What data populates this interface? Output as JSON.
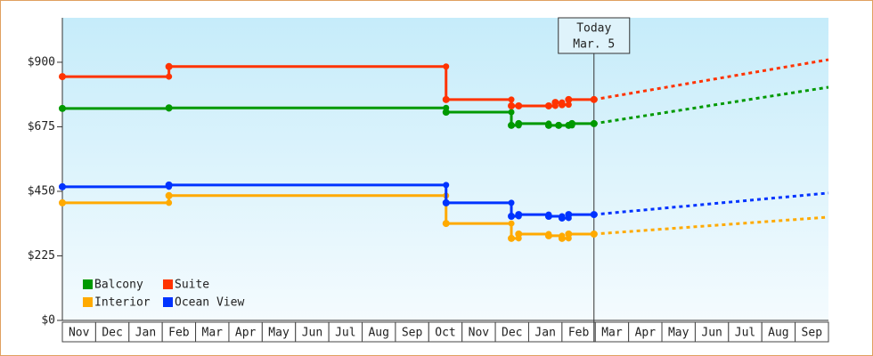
{
  "chart_data": {
    "type": "step-line",
    "categories": [
      "Nov",
      "Dec",
      "Jan",
      "Feb",
      "Mar",
      "Apr",
      "May",
      "Jun",
      "Jul",
      "Aug",
      "Sep",
      "Oct",
      "Nov",
      "Dec",
      "Jan",
      "Feb",
      "Mar",
      "Apr",
      "May",
      "Jun",
      "Jul",
      "Aug",
      "Sep"
    ],
    "xlim": [
      0,
      23
    ],
    "ylim": [
      0,
      1055
    ],
    "yticks": [
      {
        "value": 0,
        "label": "$0"
      },
      {
        "value": 225,
        "label": "$225"
      },
      {
        "value": 450,
        "label": "$450"
      },
      {
        "value": 675,
        "label": "$675"
      },
      {
        "value": 900,
        "label": "$900"
      }
    ],
    "annotation": {
      "lines": [
        "Today",
        "Mar. 5"
      ],
      "x": 15.96
    },
    "series": [
      {
        "name": "Balcony",
        "color": "#009900",
        "x": [
          0,
          3.2,
          11.52,
          13.48,
          13.7,
          14.6,
          14.9,
          15.2,
          15.3,
          15.96
        ],
        "values": [
          739,
          741,
          726,
          680,
          686,
          680,
          680,
          680,
          686,
          686
        ],
        "projection": {
          "x": [
            15.96,
            23
          ],
          "values": [
            686,
            813
          ]
        }
      },
      {
        "name": "Suite",
        "color": "#ff3300",
        "x": [
          0,
          3.2,
          11.52,
          13.48,
          13.7,
          14.6,
          14.8,
          15.0,
          15.2,
          15.96
        ],
        "values": [
          850,
          885,
          770,
          748,
          748,
          748,
          760,
          752,
          770,
          770
        ],
        "projection": {
          "x": [
            15.96,
            23
          ],
          "values": [
            770,
            909
          ]
        }
      },
      {
        "name": "Interior",
        "color": "#ffaa00",
        "x": [
          0,
          3.2,
          11.52,
          13.48,
          13.7,
          14.6,
          15.0,
          15.2,
          15.96
        ],
        "values": [
          410,
          435,
          338,
          286,
          301,
          295,
          286,
          301,
          301
        ],
        "projection": {
          "x": [
            15.96,
            23
          ],
          "values": [
            301,
            360
          ]
        }
      },
      {
        "name": "Ocean View",
        "color": "#0033ff",
        "x": [
          0,
          3.2,
          11.52,
          13.48,
          13.7,
          14.6,
          15.0,
          15.2,
          15.96
        ],
        "values": [
          466,
          472,
          410,
          363,
          369,
          363,
          357,
          369,
          369
        ],
        "projection": {
          "x": [
            15.96,
            23
          ],
          "values": [
            369,
            444
          ]
        }
      }
    ]
  }
}
